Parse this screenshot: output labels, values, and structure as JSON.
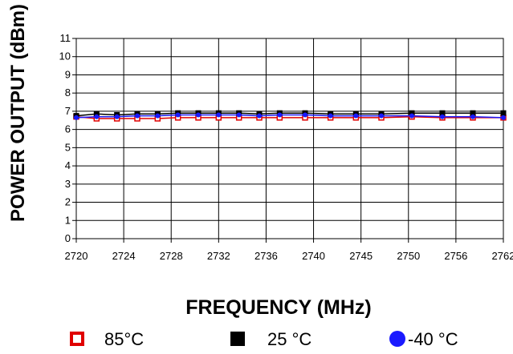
{
  "chart_data": {
    "type": "line",
    "title": "",
    "xlabel": "FREQUENCY (MHz)",
    "ylabel": "POWER OUTPUT (dBm)",
    "ylim": [
      0,
      11
    ],
    "y_ticks": [
      "0",
      "1",
      "2",
      "3",
      "4",
      "5",
      "6",
      "7",
      "8",
      "9",
      "10",
      "11"
    ],
    "x_tick_labels": [
      "2720",
      "2724",
      "2728",
      "2732",
      "2736",
      "2740",
      "2745",
      "2750",
      "2756",
      "2762"
    ],
    "x": [
      2720,
      2722,
      2724,
      2726,
      2728,
      2730,
      2732,
      2734,
      2736,
      2738,
      2740,
      2742.5,
      2745,
      2747.5,
      2750,
      2753,
      2756,
      2759,
      2762
    ],
    "grid": true,
    "legend_position": "bottom",
    "series": [
      {
        "name": "85°C",
        "marker": "open-square",
        "color": "#e00000",
        "values": [
          6.7,
          6.6,
          6.6,
          6.6,
          6.6,
          6.65,
          6.65,
          6.65,
          6.65,
          6.65,
          6.65,
          6.65,
          6.65,
          6.65,
          6.65,
          6.7,
          6.65,
          6.65,
          6.65
        ]
      },
      {
        "name": "25°C",
        "marker": "filled-square",
        "color": "#000000",
        "values": [
          6.75,
          6.85,
          6.8,
          6.85,
          6.85,
          6.9,
          6.9,
          6.9,
          6.9,
          6.85,
          6.9,
          6.9,
          6.85,
          6.85,
          6.85,
          6.9,
          6.9,
          6.9,
          6.9
        ]
      },
      {
        "name": "-40°C",
        "marker": "filled-circle",
        "color": "#1a1aff",
        "values": [
          6.65,
          6.7,
          6.7,
          6.75,
          6.75,
          6.8,
          6.8,
          6.8,
          6.8,
          6.75,
          6.8,
          6.8,
          6.75,
          6.75,
          6.75,
          6.75,
          6.7,
          6.7,
          6.65
        ]
      }
    ]
  },
  "legend": {
    "item_85": "85°C",
    "item_25": "25 °C",
    "item_m40": "-40 °C"
  }
}
